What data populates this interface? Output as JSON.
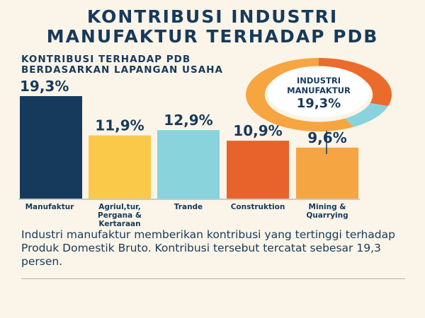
{
  "header": {
    "title_line1": "KONTRIBUSI INDUSTRI",
    "title_line2": "MANUFAKTUR TERHADAP PDB",
    "subtitle_line1": "KONTRIBUSI TERHADAP PDB",
    "subtitle_line2": "BERDASARKAN LAPANGAN USAHA"
  },
  "chart_data": [
    {
      "type": "bar",
      "categories": [
        "Manufaktur",
        "Agriul,tur, Pergana & Kertaraan",
        "Trande",
        "Construktion",
        "Mining & Quarrying"
      ],
      "category_lines": [
        [
          "Manufaktur"
        ],
        [
          "Agriul,tur,",
          "Pergana &",
          "Kertaraan"
        ],
        [
          "Trande"
        ],
        [
          "Construktion"
        ],
        [
          "Mining &",
          "Quarrying"
        ]
      ],
      "values": [
        19.3,
        11.9,
        12.9,
        10.9,
        9.6
      ],
      "value_labels": [
        "19,3%",
        "11,9%",
        "12,9%",
        "10,9%",
        "9,6%"
      ],
      "colors": [
        "#163a5c",
        "#fbc94a",
        "#89d3dc",
        "#e8622c",
        "#f5a541"
      ],
      "ylim": [
        0,
        20.5
      ],
      "grid": false,
      "legend": "none"
    },
    {
      "type": "pie",
      "style": "donut",
      "title_lines": [
        "INDUSTRI",
        "MANUFAKTUR"
      ],
      "center_value": "19,3%",
      "slices": [
        {
          "value": 30,
          "color": "#ea6b2b"
        },
        {
          "value": 12,
          "color": "#89d3dc"
        },
        {
          "value": 58,
          "color": "#f7a540"
        }
      ]
    }
  ],
  "caption": "Industri manufaktur memberikan kontribusi yang tertinggi terhadap Produk Domestik Bruto. Kontribusi tersebut tercatat sebesar 19,3 persen."
}
